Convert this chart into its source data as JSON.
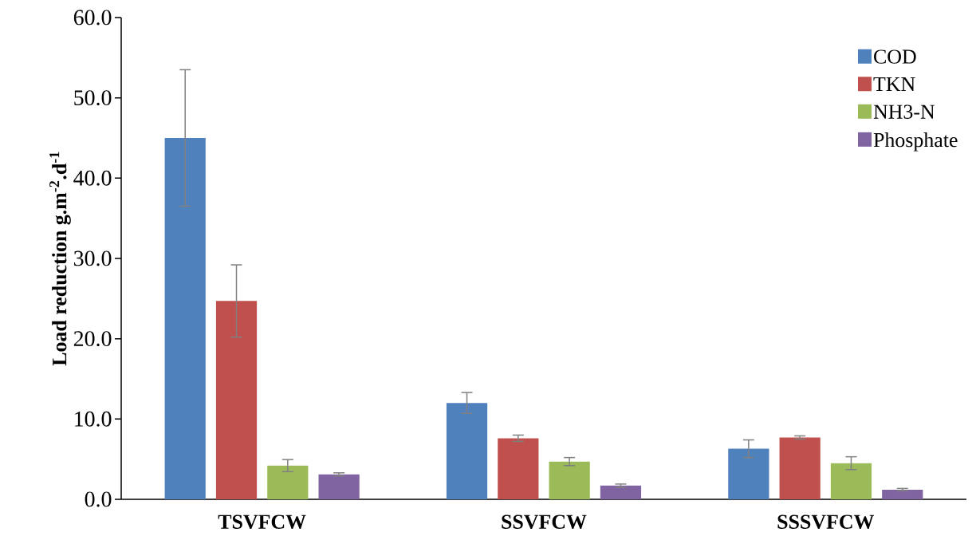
{
  "chart_data": {
    "type": "bar",
    "ylabel": "Load reduction g.m$^{-2}$.d$^{-1}$",
    "categories": [
      "TSVFCW",
      "SSVFCW",
      "SSSVFCW"
    ],
    "series": [
      {
        "name": "COD",
        "color": "#4f81bd",
        "values": [
          45.0,
          12.0,
          6.3
        ],
        "errors": [
          8.5,
          1.3,
          1.1
        ]
      },
      {
        "name": "TKN",
        "color": "#c0504d",
        "values": [
          24.7,
          7.6,
          7.7
        ],
        "errors": [
          4.5,
          0.4,
          0.2
        ]
      },
      {
        "name": "NH3-N",
        "color": "#9bbb59",
        "values": [
          4.2,
          4.7,
          4.5
        ],
        "errors": [
          0.75,
          0.5,
          0.8
        ]
      },
      {
        "name": "Phosphate",
        "color": "#8064a2",
        "values": [
          3.1,
          1.7,
          1.2
        ],
        "errors": [
          0.2,
          0.2,
          0.15
        ]
      }
    ],
    "ylim": [
      0,
      60
    ],
    "yticks": [
      {
        "value": 0,
        "label": "0.0"
      },
      {
        "value": 10,
        "label": "10.0"
      },
      {
        "value": 20,
        "label": "20.0"
      },
      {
        "value": 30,
        "label": "30.0"
      },
      {
        "value": 40,
        "label": "40.0"
      },
      {
        "value": 50,
        "label": "50.0"
      },
      {
        "value": 60,
        "label": "60.0"
      }
    ],
    "grid": false,
    "legend": "top right"
  }
}
